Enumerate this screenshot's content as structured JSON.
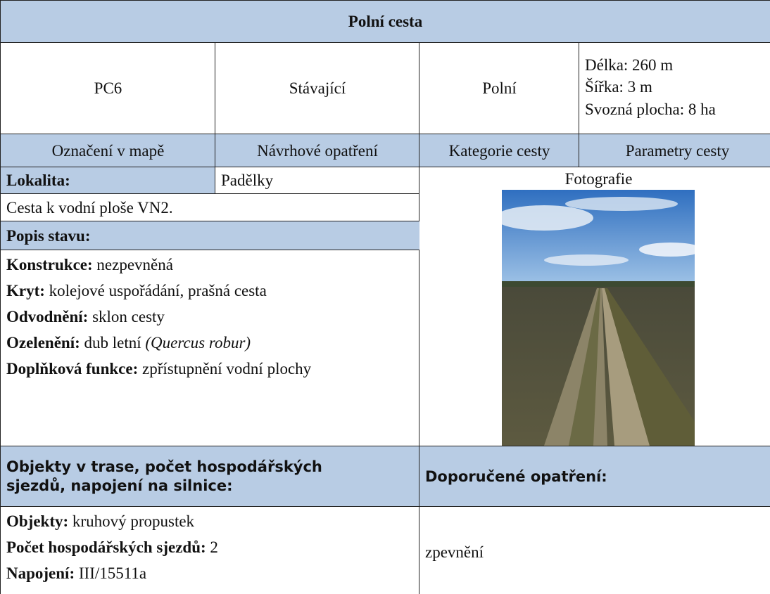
{
  "header": {
    "title": "Polní cesta"
  },
  "summary": {
    "values": [
      "PC6",
      "Stávající",
      "Polní"
    ],
    "parameters": [
      "Délka: 260 m",
      "Šířka: 3 m",
      "Svozná plocha: 8 ha"
    ]
  },
  "labels": [
    "Označení v mapě",
    "Návrhové opatření",
    "Kategorie cesty",
    "Parametry cesty"
  ],
  "locality": {
    "label": "Lokalita:",
    "value": "Padělky"
  },
  "description": "Cesta k vodní ploše VN2.",
  "state": {
    "title": "Popis stavu:",
    "items": [
      {
        "label": "Konstrukce:",
        "text": "nezpevněná"
      },
      {
        "label": "Kryt:",
        "text": "kolejové uspořádání, prašná cesta"
      },
      {
        "label": "Odvodnění:",
        "text": "sklon cesty"
      },
      {
        "label": "Ozelenění:",
        "text": "dub letní",
        "italic": "(Quercus robur)"
      },
      {
        "label": "Doplňková funkce:",
        "text": "zpřístupnění vodní plochy"
      }
    ]
  },
  "photo": {
    "caption": "Fotografie"
  },
  "objects": {
    "title": "Objekty v trase, počet hospodářských sjezdů, napojení na silnice:",
    "items": [
      {
        "label": "Objekty:",
        "text": "kruhový propustek"
      },
      {
        "label": "Počet hospodářských sjezdů:",
        "text": "2"
      },
      {
        "label": "Napojení:",
        "text": "III/15511a"
      }
    ]
  },
  "recommended": {
    "title": "Doporučené opatření:",
    "text": "zpevnění"
  }
}
